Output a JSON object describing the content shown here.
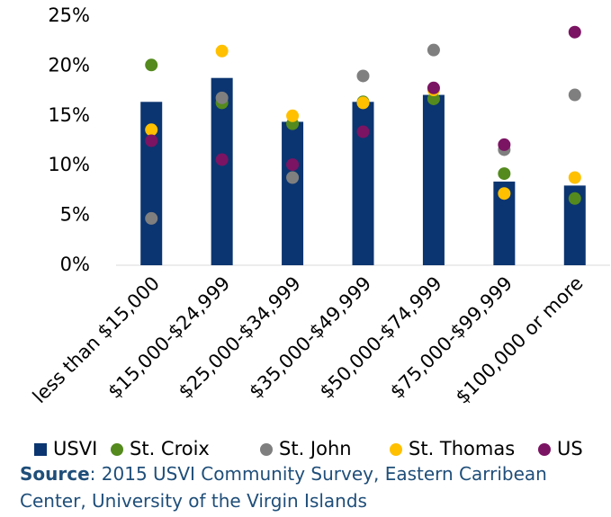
{
  "chart_data": {
    "type": "bar",
    "categories": [
      "less than $15,000",
      "$15,000-$24,999",
      "$25,000-$34,999",
      "$35,000-$49,999",
      "$50,000-$74,999",
      "$75,000-$99,999",
      "$100,000 or more"
    ],
    "series": [
      {
        "name": "USVI",
        "type": "bar",
        "color": "#0b3570",
        "values": [
          16.4,
          18.8,
          14.4,
          16.4,
          17.1,
          8.4,
          8.0
        ]
      },
      {
        "name": "St. Croix",
        "type": "scatter",
        "color": "#548a1e",
        "values": [
          20.1,
          16.3,
          14.2,
          16.4,
          16.7,
          9.2,
          6.7
        ]
      },
      {
        "name": "St. John",
        "type": "scatter",
        "color": "#7f7f7f",
        "values": [
          4.7,
          16.8,
          8.8,
          19.0,
          21.6,
          11.6,
          17.1
        ]
      },
      {
        "name": "St. Thomas",
        "type": "scatter",
        "color": "#ffc000",
        "values": [
          13.6,
          21.5,
          15.0,
          16.3,
          17.6,
          7.2,
          8.8
        ]
      },
      {
        "name": "US",
        "type": "scatter",
        "color": "#7b1463",
        "values": [
          12.5,
          10.6,
          10.1,
          13.4,
          17.8,
          12.1,
          23.4
        ]
      }
    ],
    "ylim": [
      0,
      25
    ],
    "yticks": [
      {
        "value": 0,
        "label": "0%"
      },
      {
        "value": 5,
        "label": "5%"
      },
      {
        "value": 10,
        "label": "10%"
      },
      {
        "value": 15,
        "label": "15%"
      },
      {
        "value": 20,
        "label": "20%"
      },
      {
        "value": 25,
        "label": "25%"
      }
    ],
    "grid": false,
    "legend": "bottom",
    "source_label": "Source",
    "source_text": ": 2015 USVI Community Survey, Eastern Carribean Center, University of the Virgin Islands"
  }
}
